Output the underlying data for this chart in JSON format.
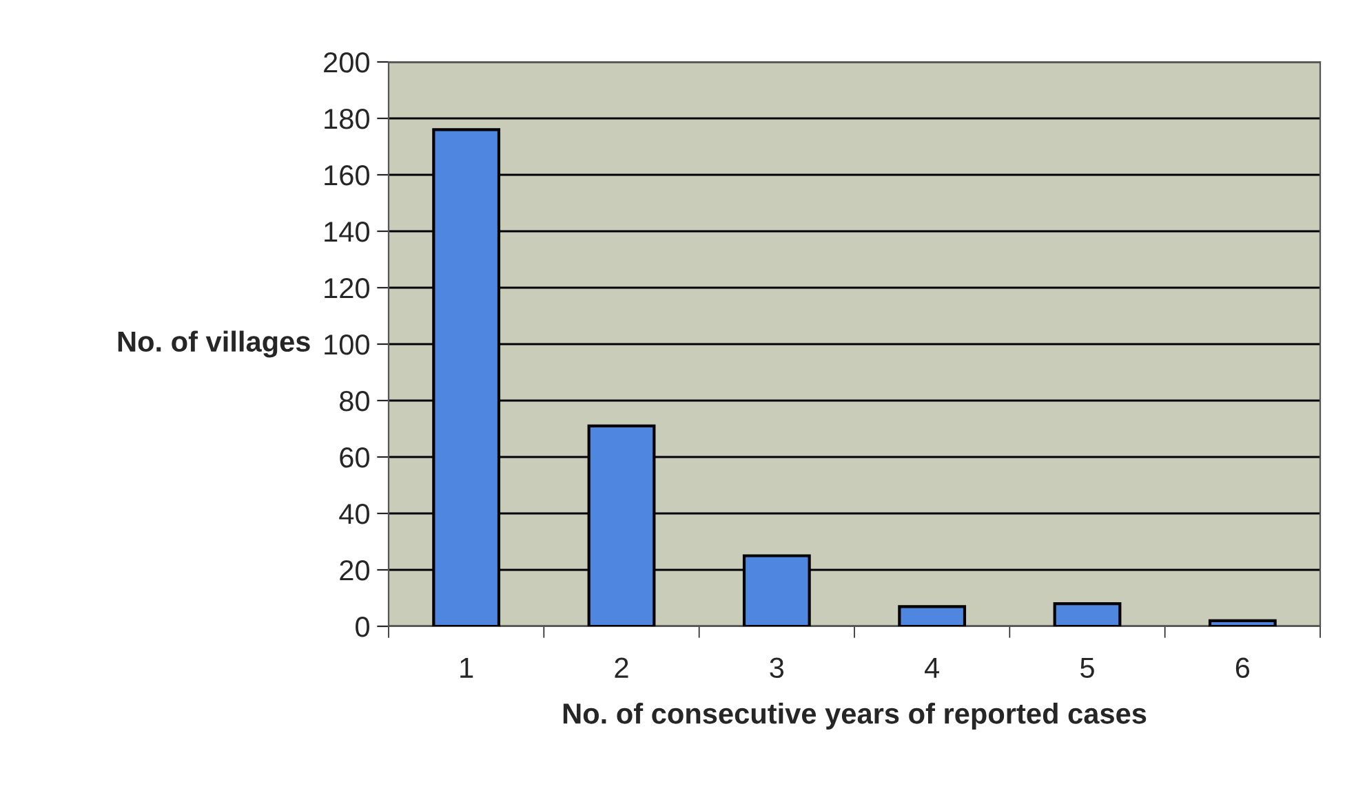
{
  "chart_data": {
    "type": "bar",
    "xlabel": "No. of consecutive years of reported cases",
    "ylabel": "No. of villages",
    "categories": [
      "1",
      "2",
      "3",
      "4",
      "5",
      "6"
    ],
    "values": [
      176,
      71,
      25,
      7,
      8,
      2
    ],
    "color": "#4f86e0",
    "ylim": [
      0,
      200
    ],
    "yticks": [
      0,
      20,
      40,
      60,
      80,
      100,
      120,
      140,
      160,
      180,
      200
    ],
    "grid": "y"
  }
}
